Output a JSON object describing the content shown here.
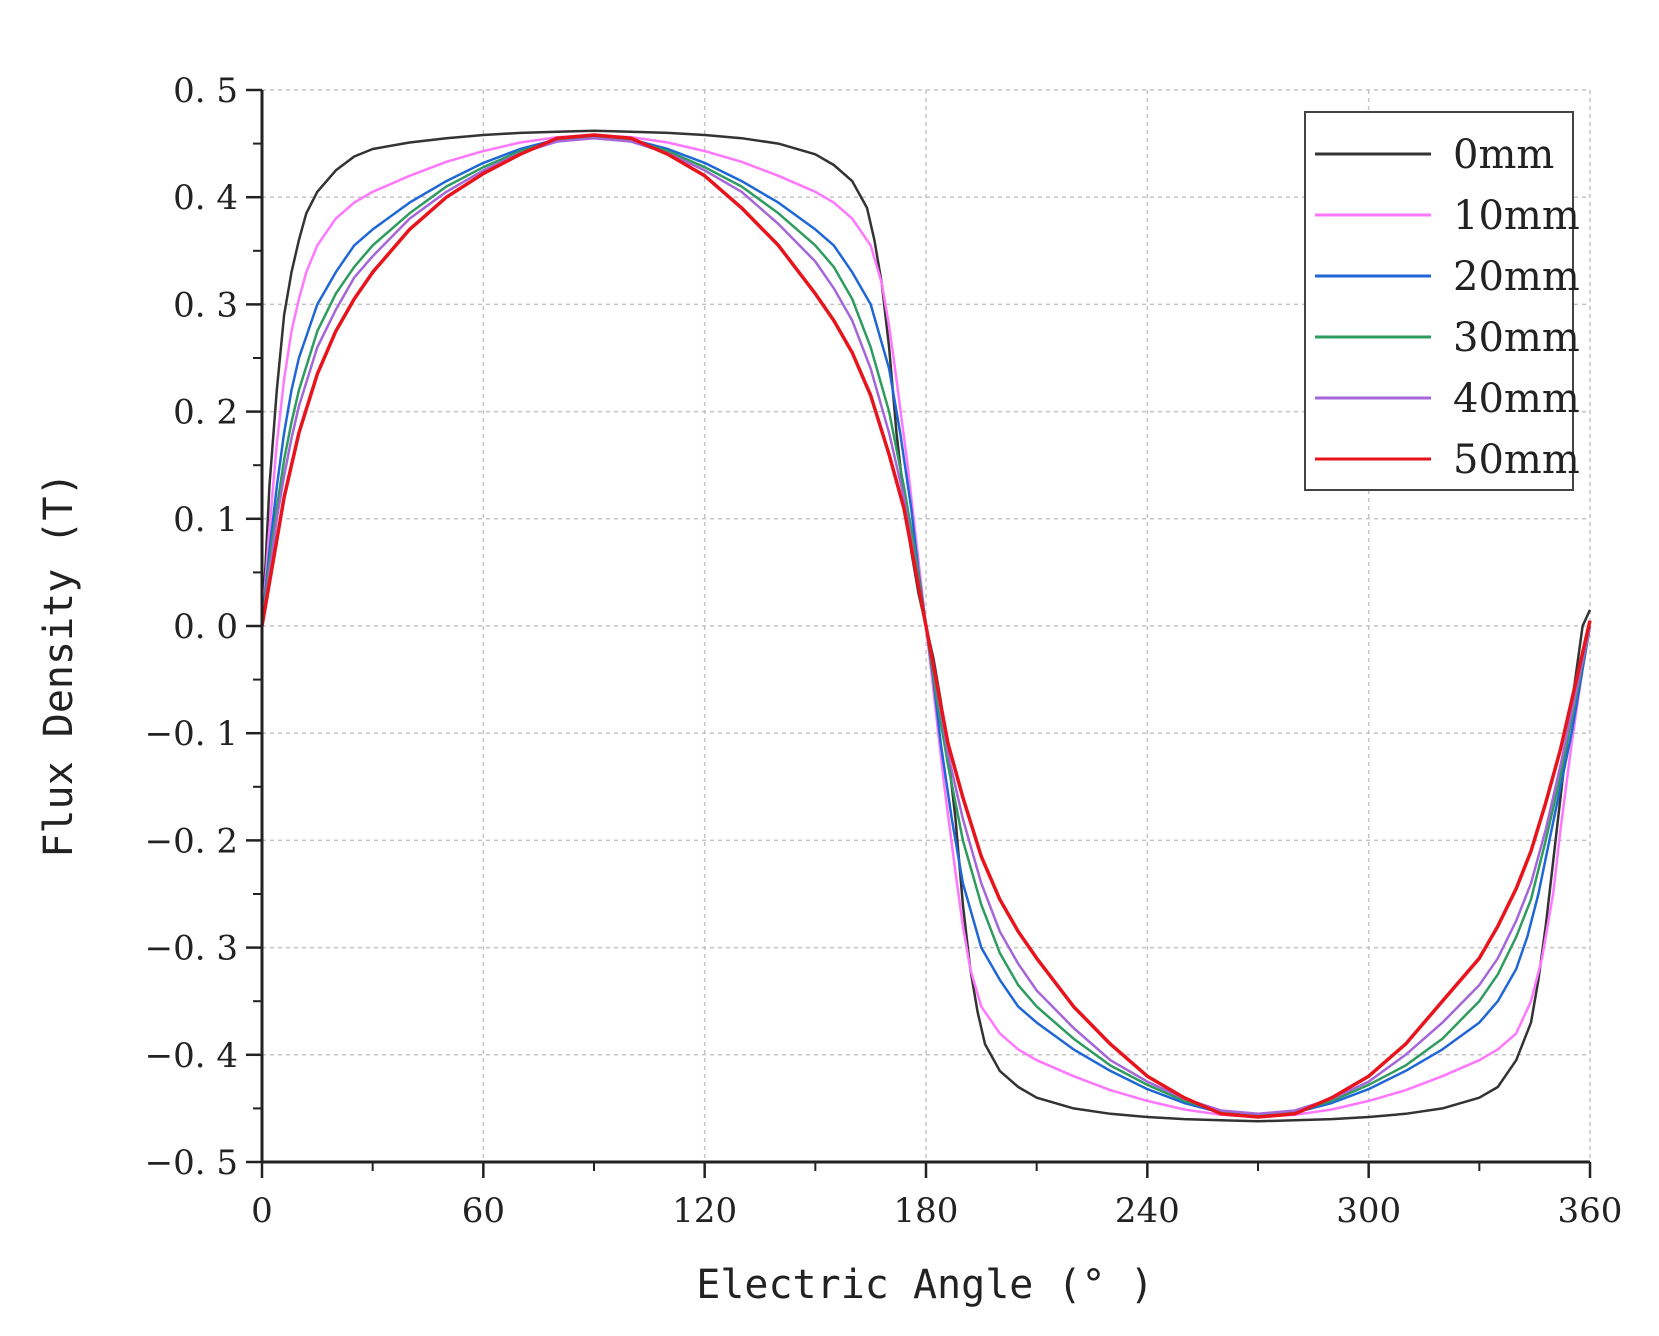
{
  "chart_data": {
    "type": "line",
    "title": "",
    "xlabel": "Electric Angle (° )",
    "ylabel": "Flux Density (T)",
    "xlim": [
      0,
      360
    ],
    "ylim": [
      -0.5,
      0.5
    ],
    "grid": true,
    "legend_position": "top-right",
    "x_ticks": [
      0,
      60,
      120,
      180,
      240,
      300,
      360
    ],
    "x_tick_labels": [
      "0",
      "60",
      "120",
      "180",
      "240",
      "300",
      "360"
    ],
    "y_ticks": [
      0.5,
      0.4,
      0.3,
      0.2,
      0.1,
      0.0,
      -0.1,
      -0.2,
      -0.3,
      -0.4,
      -0.5
    ],
    "y_tick_labels": [
      "0. 5",
      "0. 4",
      "0. 3",
      "0. 2",
      "0. 1",
      "0. 0",
      "−0. 1",
      "−0. 2",
      "−0. 3",
      "−0. 4",
      "−0. 5"
    ],
    "series": [
      {
        "name": "0mm",
        "color": "#333333",
        "x": [
          0,
          1,
          2,
          4,
          6,
          8,
          10,
          12,
          15,
          20,
          25,
          30,
          40,
          50,
          60,
          70,
          80,
          90,
          100,
          110,
          120,
          130,
          140,
          150,
          155,
          160,
          164,
          166,
          168,
          170,
          172,
          174,
          176,
          178,
          180,
          182,
          184,
          186,
          188,
          190,
          192,
          194,
          196,
          200,
          205,
          210,
          220,
          230,
          240,
          250,
          260,
          270,
          280,
          290,
          300,
          310,
          320,
          330,
          335,
          340,
          344,
          346,
          348,
          350,
          352,
          354,
          356,
          358,
          360
        ],
        "y": [
          0.0,
          0.06,
          0.13,
          0.22,
          0.29,
          0.33,
          0.36,
          0.385,
          0.405,
          0.425,
          0.438,
          0.445,
          0.451,
          0.455,
          0.458,
          0.46,
          0.461,
          0.462,
          0.461,
          0.46,
          0.458,
          0.455,
          0.45,
          0.44,
          0.43,
          0.415,
          0.39,
          0.36,
          0.32,
          0.26,
          0.18,
          0.12,
          0.07,
          0.03,
          0.0,
          -0.03,
          -0.07,
          -0.12,
          -0.18,
          -0.26,
          -0.32,
          -0.36,
          -0.39,
          -0.415,
          -0.43,
          -0.44,
          -0.45,
          -0.455,
          -0.458,
          -0.46,
          -0.461,
          -0.462,
          -0.461,
          -0.46,
          -0.458,
          -0.455,
          -0.45,
          -0.44,
          -0.43,
          -0.405,
          -0.37,
          -0.33,
          -0.28,
          -0.22,
          -0.16,
          -0.1,
          -0.05,
          0.0,
          0.015
        ]
      },
      {
        "name": "10mm",
        "color": "#ff77ff",
        "x": [
          0,
          2,
          4,
          6,
          8,
          10,
          12,
          15,
          20,
          25,
          30,
          40,
          50,
          60,
          70,
          80,
          90,
          100,
          110,
          120,
          130,
          140,
          150,
          155,
          160,
          165,
          168,
          170,
          172,
          175,
          178,
          180,
          182,
          185,
          188,
          190,
          192,
          195,
          200,
          205,
          210,
          220,
          230,
          240,
          250,
          260,
          270,
          280,
          290,
          300,
          310,
          320,
          330,
          335,
          340,
          344,
          347,
          350,
          352,
          355,
          358,
          360
        ],
        "y": [
          0.0,
          0.09,
          0.17,
          0.23,
          0.275,
          0.305,
          0.33,
          0.355,
          0.38,
          0.395,
          0.405,
          0.42,
          0.433,
          0.443,
          0.451,
          0.456,
          0.458,
          0.456,
          0.451,
          0.443,
          0.433,
          0.42,
          0.405,
          0.395,
          0.38,
          0.355,
          0.32,
          0.28,
          0.23,
          0.15,
          0.06,
          0.0,
          -0.06,
          -0.15,
          -0.23,
          -0.28,
          -0.32,
          -0.355,
          -0.38,
          -0.395,
          -0.405,
          -0.42,
          -0.433,
          -0.443,
          -0.451,
          -0.456,
          -0.458,
          -0.456,
          -0.451,
          -0.443,
          -0.433,
          -0.42,
          -0.405,
          -0.395,
          -0.38,
          -0.35,
          -0.31,
          -0.25,
          -0.19,
          -0.11,
          -0.04,
          0.0
        ]
      },
      {
        "name": "20mm",
        "color": "#1f66d6",
        "x": [
          0,
          2,
          4,
          6,
          8,
          10,
          15,
          20,
          25,
          30,
          40,
          50,
          60,
          70,
          80,
          90,
          100,
          110,
          120,
          130,
          140,
          150,
          155,
          160,
          165,
          170,
          173,
          176,
          178,
          180,
          182,
          184,
          187,
          190,
          195,
          200,
          205,
          210,
          220,
          230,
          240,
          250,
          260,
          270,
          280,
          290,
          300,
          310,
          320,
          330,
          335,
          340,
          343,
          346,
          349,
          352,
          355,
          358,
          360
        ],
        "y": [
          0.0,
          0.07,
          0.13,
          0.18,
          0.22,
          0.25,
          0.3,
          0.33,
          0.355,
          0.37,
          0.395,
          0.415,
          0.432,
          0.445,
          0.454,
          0.457,
          0.454,
          0.445,
          0.432,
          0.415,
          0.395,
          0.37,
          0.355,
          0.33,
          0.3,
          0.24,
          0.18,
          0.11,
          0.05,
          0.0,
          -0.05,
          -0.11,
          -0.18,
          -0.24,
          -0.3,
          -0.33,
          -0.355,
          -0.37,
          -0.395,
          -0.415,
          -0.432,
          -0.445,
          -0.454,
          -0.457,
          -0.454,
          -0.445,
          -0.432,
          -0.415,
          -0.395,
          -0.37,
          -0.35,
          -0.32,
          -0.29,
          -0.25,
          -0.2,
          -0.15,
          -0.1,
          -0.04,
          0.0
        ]
      },
      {
        "name": "30mm",
        "color": "#2e9b5f",
        "x": [
          0,
          2,
          4,
          6,
          8,
          10,
          15,
          20,
          25,
          30,
          40,
          50,
          60,
          70,
          80,
          90,
          100,
          110,
          120,
          130,
          140,
          150,
          155,
          160,
          165,
          170,
          174,
          177,
          180,
          183,
          186,
          190,
          195,
          200,
          205,
          210,
          220,
          230,
          240,
          250,
          260,
          270,
          280,
          290,
          300,
          310,
          320,
          330,
          335,
          340,
          344,
          348,
          352,
          356,
          360
        ],
        "y": [
          0.0,
          0.06,
          0.11,
          0.155,
          0.19,
          0.22,
          0.275,
          0.31,
          0.335,
          0.355,
          0.385,
          0.41,
          0.428,
          0.443,
          0.453,
          0.456,
          0.453,
          0.443,
          0.428,
          0.41,
          0.385,
          0.355,
          0.335,
          0.305,
          0.26,
          0.2,
          0.13,
          0.07,
          0.0,
          -0.07,
          -0.13,
          -0.2,
          -0.26,
          -0.305,
          -0.335,
          -0.355,
          -0.385,
          -0.41,
          -0.428,
          -0.443,
          -0.453,
          -0.456,
          -0.453,
          -0.443,
          -0.428,
          -0.41,
          -0.385,
          -0.35,
          -0.325,
          -0.29,
          -0.255,
          -0.2,
          -0.14,
          -0.07,
          0.0
        ]
      },
      {
        "name": "40mm",
        "color": "#a466d8",
        "x": [
          0,
          2,
          4,
          6,
          8,
          10,
          15,
          20,
          25,
          30,
          40,
          50,
          60,
          70,
          80,
          90,
          100,
          110,
          120,
          130,
          140,
          150,
          155,
          160,
          165,
          170,
          174,
          177,
          180,
          183,
          186,
          190,
          195,
          200,
          205,
          210,
          220,
          230,
          240,
          250,
          260,
          270,
          280,
          290,
          300,
          310,
          320,
          330,
          335,
          340,
          344,
          348,
          352,
          356,
          360
        ],
        "y": [
          0.0,
          0.05,
          0.1,
          0.14,
          0.175,
          0.205,
          0.26,
          0.295,
          0.325,
          0.345,
          0.38,
          0.405,
          0.425,
          0.441,
          0.452,
          0.455,
          0.452,
          0.441,
          0.425,
          0.405,
          0.375,
          0.34,
          0.315,
          0.285,
          0.24,
          0.18,
          0.12,
          0.06,
          0.0,
          -0.06,
          -0.12,
          -0.18,
          -0.24,
          -0.285,
          -0.315,
          -0.34,
          -0.375,
          -0.405,
          -0.425,
          -0.441,
          -0.452,
          -0.455,
          -0.452,
          -0.441,
          -0.425,
          -0.4,
          -0.37,
          -0.335,
          -0.31,
          -0.275,
          -0.24,
          -0.19,
          -0.13,
          -0.065,
          0.0
        ]
      },
      {
        "name": "50mm",
        "color": "#e8141c",
        "x": [
          0,
          2,
          4,
          6,
          8,
          10,
          15,
          20,
          25,
          30,
          40,
          50,
          60,
          70,
          80,
          90,
          100,
          110,
          120,
          130,
          140,
          150,
          155,
          160,
          165,
          170,
          174,
          177,
          180,
          183,
          186,
          190,
          195,
          200,
          205,
          210,
          220,
          230,
          240,
          250,
          260,
          270,
          280,
          290,
          300,
          310,
          320,
          330,
          335,
          340,
          344,
          348,
          352,
          356,
          360
        ],
        "y": [
          0.0,
          0.04,
          0.08,
          0.12,
          0.15,
          0.18,
          0.235,
          0.275,
          0.305,
          0.33,
          0.37,
          0.4,
          0.422,
          0.44,
          0.455,
          0.458,
          0.455,
          0.44,
          0.42,
          0.39,
          0.355,
          0.31,
          0.285,
          0.255,
          0.215,
          0.16,
          0.11,
          0.055,
          0.0,
          -0.055,
          -0.11,
          -0.16,
          -0.215,
          -0.255,
          -0.285,
          -0.31,
          -0.355,
          -0.39,
          -0.42,
          -0.44,
          -0.455,
          -0.458,
          -0.455,
          -0.44,
          -0.42,
          -0.39,
          -0.35,
          -0.31,
          -0.28,
          -0.245,
          -0.21,
          -0.165,
          -0.115,
          -0.055,
          0.005
        ]
      }
    ]
  }
}
